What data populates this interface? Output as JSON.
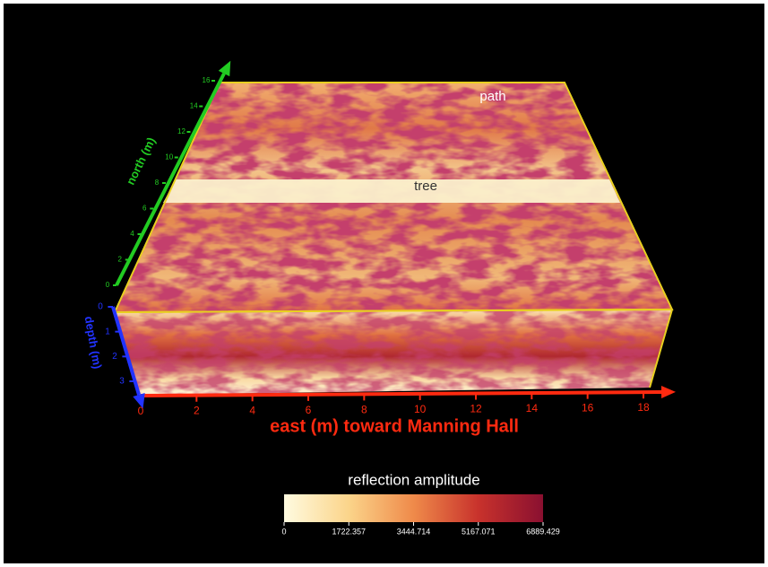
{
  "chart_data": {
    "type": "volume",
    "annotations": [
      "path",
      "tree"
    ],
    "x_axis": {
      "label": "east (m) toward Manning Hall",
      "ticks": [
        0,
        2,
        4,
        6,
        8,
        10,
        12,
        14,
        16,
        18
      ],
      "color": "#ff2a10"
    },
    "y_axis": {
      "label": "north (m)",
      "ticks": [
        0,
        2,
        4,
        6,
        8,
        10,
        12,
        14,
        16
      ],
      "color": "#22cc22"
    },
    "z_axis": {
      "label": "depth (m)",
      "ticks": [
        0,
        1,
        2,
        3
      ],
      "color": "#2233ff"
    },
    "colorbar": {
      "title": "reflection amplitude",
      "ticks": [
        0,
        1722.357,
        3444.714,
        5167.071,
        6889.429
      ],
      "colors": [
        "#fffbe0",
        "#fbd48a",
        "#ef8a4a",
        "#c8322c",
        "#8a1030"
      ]
    }
  }
}
